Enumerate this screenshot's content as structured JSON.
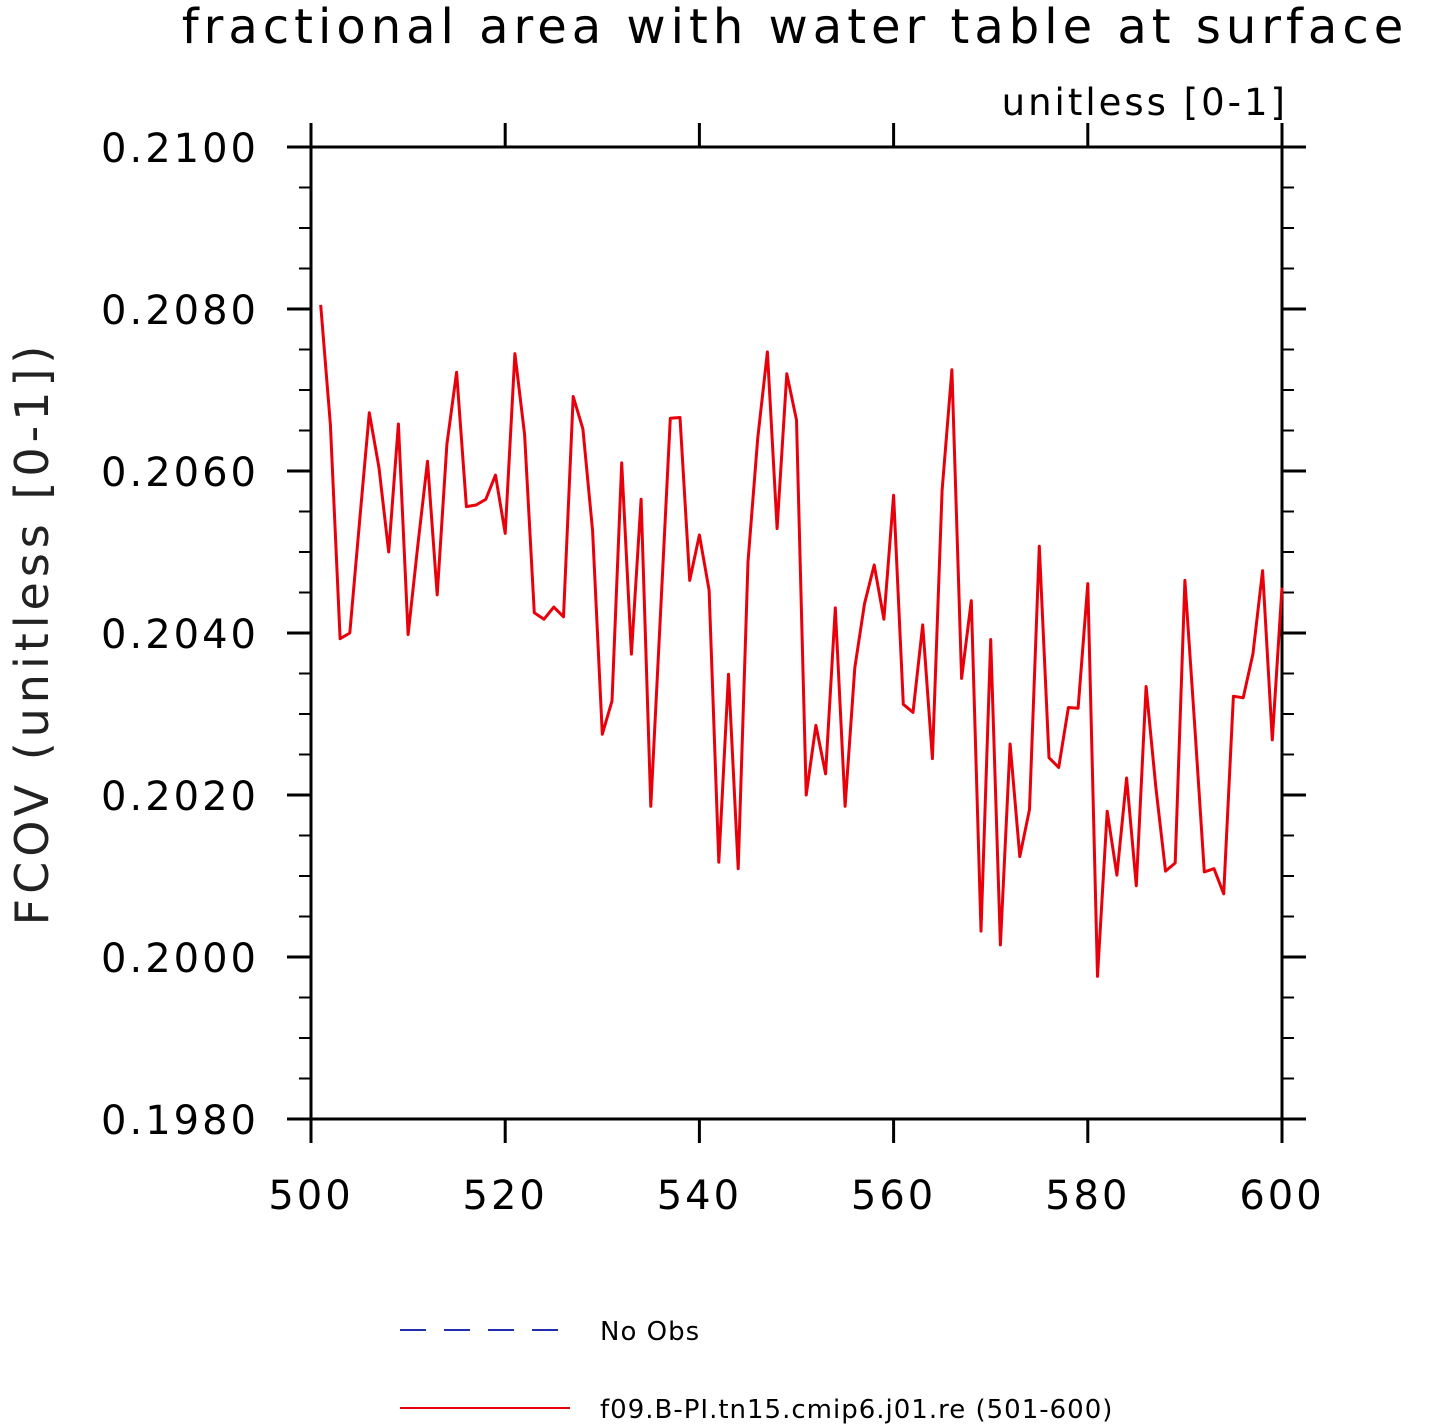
{
  "chart_data": {
    "type": "line",
    "title": "fractional area with water table at surface",
    "subtitle": "unitless [0-1]",
    "ylabel": "FCOV  (unitless [0-1])",
    "xlabel": "",
    "xlim": [
      500,
      600
    ],
    "ylim": [
      0.198,
      0.21
    ],
    "x_ticks": [
      500,
      520,
      540,
      560,
      580,
      600
    ],
    "x_tick_labels": [
      "500",
      "520",
      "540",
      "560",
      "580",
      "600"
    ],
    "y_ticks": [
      0.198,
      0.2,
      0.202,
      0.204,
      0.206,
      0.208,
      0.21
    ],
    "y_tick_labels": [
      "0.1980",
      "0.2000",
      "0.2020",
      "0.2040",
      "0.2060",
      "0.2080",
      "0.2100"
    ],
    "grid": false,
    "legend_position": "bottom",
    "legend": [
      {
        "label": "No Obs",
        "color": "#1f2fb0",
        "style": "dashed"
      },
      {
        "label": "f09.B-PI.tn15.cmip6.j01.re (501-600)",
        "color": "#e8000b",
        "style": "solid"
      }
    ],
    "series": [
      {
        "name": "f09.B-PI.tn15.cmip6.j01.re (501-600)",
        "color": "#e8000b",
        "x": [
          501,
          502,
          503,
          504,
          505,
          506,
          507,
          508,
          509,
          510,
          511,
          512,
          513,
          514,
          515,
          516,
          517,
          518,
          519,
          520,
          521,
          522,
          523,
          524,
          525,
          526,
          527,
          528,
          529,
          530,
          531,
          532,
          533,
          534,
          535,
          536,
          537,
          538,
          539,
          540,
          541,
          542,
          543,
          544,
          545,
          546,
          547,
          548,
          549,
          550,
          551,
          552,
          553,
          554,
          555,
          556,
          557,
          558,
          559,
          560,
          561,
          562,
          563,
          564,
          565,
          566,
          567,
          568,
          569,
          570,
          571,
          572,
          573,
          574,
          575,
          576,
          577,
          578,
          579,
          580,
          581,
          582,
          583,
          584,
          585,
          586,
          587,
          588,
          589,
          590,
          591,
          592,
          593,
          594,
          595,
          596,
          597,
          598,
          599,
          600
        ],
        "values": [
          0.20805,
          0.20657,
          0.20393,
          0.204,
          0.20538,
          0.20672,
          0.20604,
          0.205,
          0.20658,
          0.20398,
          0.20508,
          0.20612,
          0.20447,
          0.20633,
          0.20722,
          0.20556,
          0.20558,
          0.20565,
          0.20595,
          0.20523,
          0.20745,
          0.20645,
          0.20425,
          0.20417,
          0.20432,
          0.2042,
          0.20692,
          0.20652,
          0.20526,
          0.20275,
          0.20316,
          0.2061,
          0.20374,
          0.20565,
          0.20186,
          0.20426,
          0.20665,
          0.20666,
          0.20465,
          0.20521,
          0.20453,
          0.20117,
          0.20349,
          0.20109,
          0.20488,
          0.2064,
          0.20747,
          0.20529,
          0.2072,
          0.20663,
          0.202,
          0.20286,
          0.20226,
          0.20431,
          0.20186,
          0.20357,
          0.20436,
          0.20484,
          0.20417,
          0.2057,
          0.20312,
          0.20302,
          0.2041,
          0.20245,
          0.20576,
          0.20725,
          0.20344,
          0.2044,
          0.20032,
          0.20392,
          0.20015,
          0.20263,
          0.20124,
          0.20182,
          0.20507,
          0.20246,
          0.20234,
          0.20308,
          0.20307,
          0.20461,
          0.19976,
          0.2018,
          0.20101,
          0.20221,
          0.20088,
          0.20334,
          0.2021,
          0.20106,
          0.20116,
          0.20465,
          0.20288,
          0.20105,
          0.20109,
          0.20078,
          0.20322,
          0.2032,
          0.20374,
          0.20477,
          0.20268,
          0.20456
        ]
      }
    ]
  }
}
